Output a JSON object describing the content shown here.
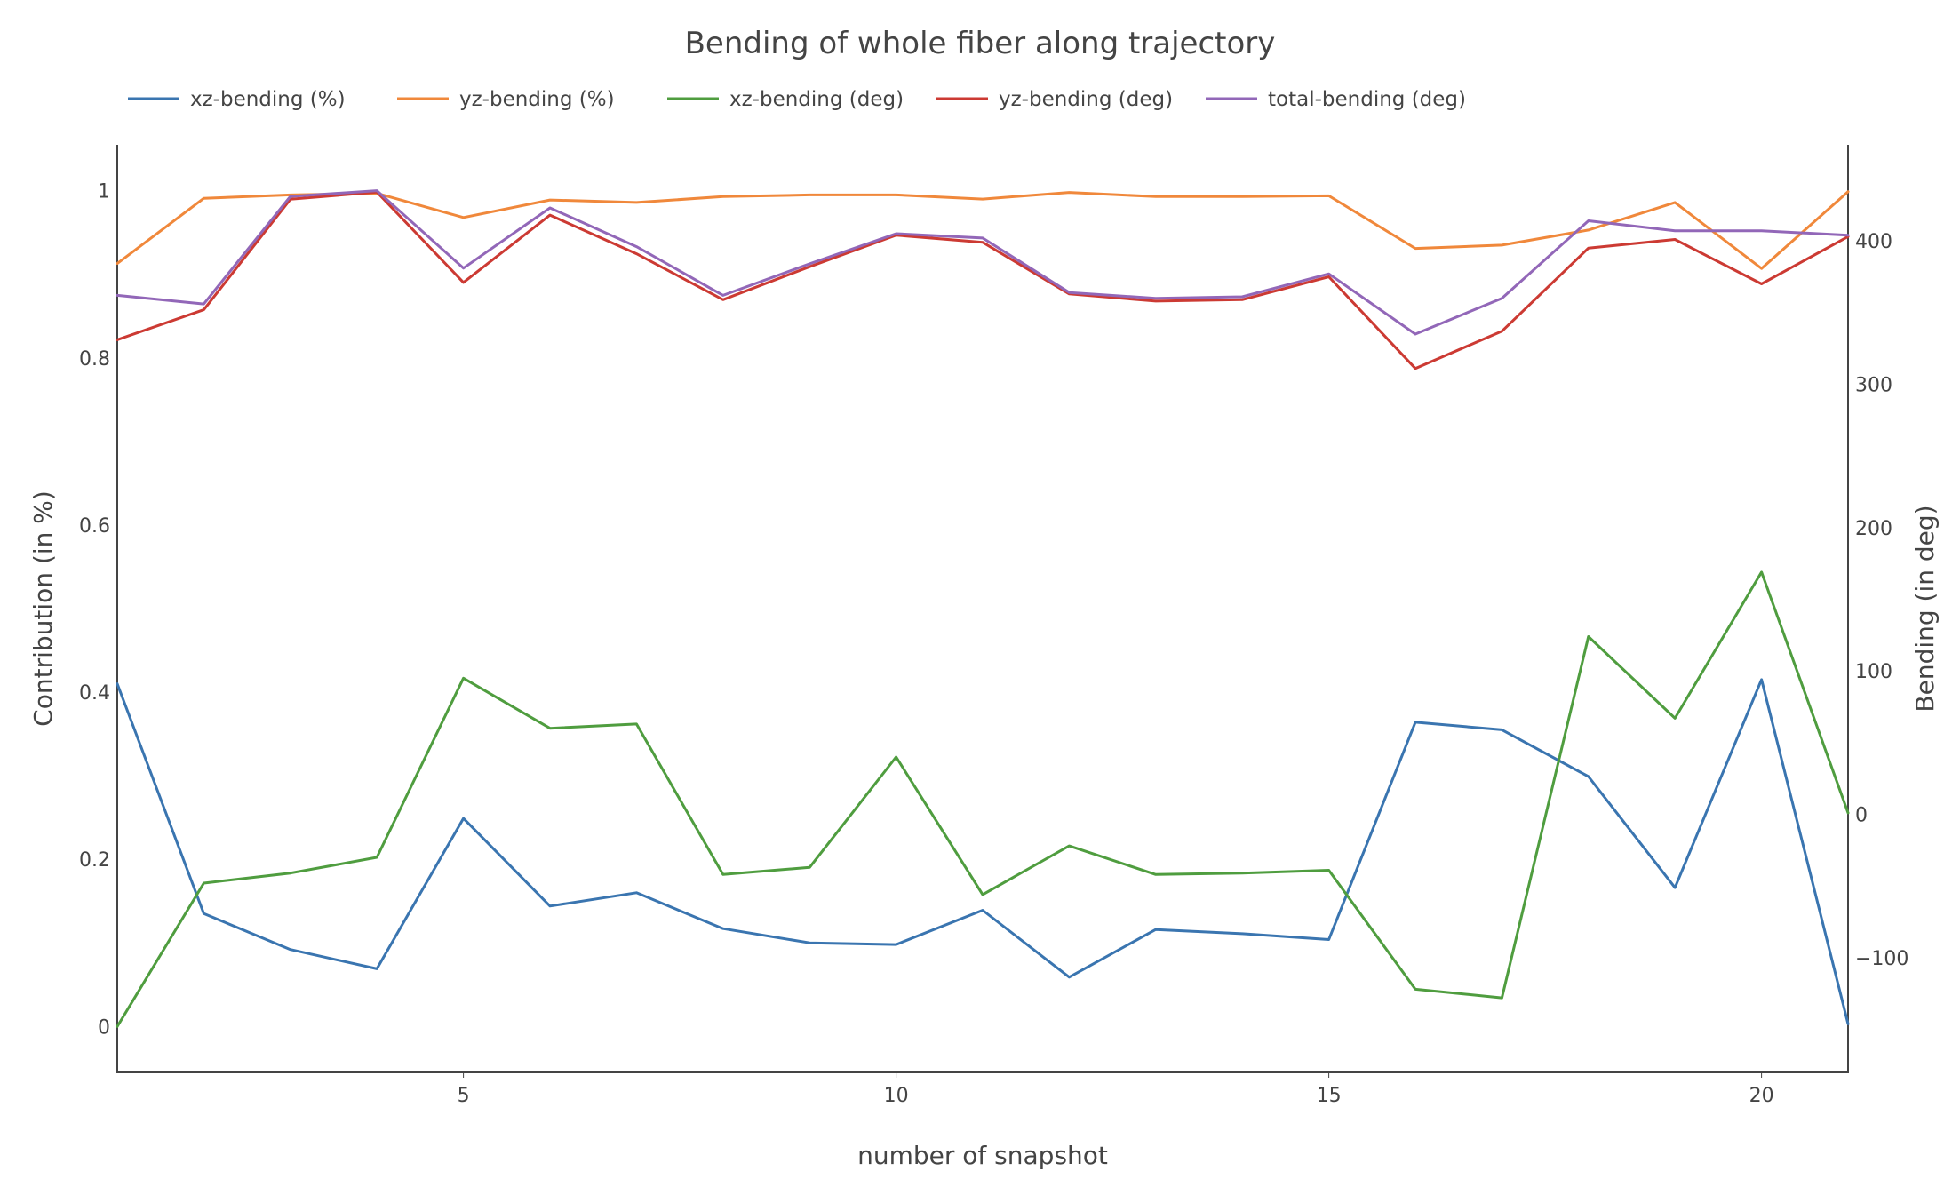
{
  "chart_data": {
    "type": "line",
    "title": "Bending of whole fiber along trajectory",
    "xlabel": "number of snapshot",
    "ylabel_left": "Contribution (in %)",
    "ylabel_right": "Bending (in deg)",
    "xlim": [
      1,
      21
    ],
    "ylim_left": [
      -0.055,
      1.055
    ],
    "ylim_right": [
      -180,
      467
    ],
    "x_ticks": [
      5,
      10,
      15,
      20
    ],
    "y_ticks_left": [
      0,
      0.2,
      0.4,
      0.6,
      0.8,
      1
    ],
    "y_ticks_right": [
      -100,
      0,
      100,
      200,
      300,
      400
    ],
    "grid": false,
    "legend_position": "top",
    "x": [
      1,
      2,
      3,
      4,
      5,
      6,
      7,
      8,
      9,
      10,
      11,
      12,
      13,
      14,
      15,
      16,
      17,
      18,
      19,
      20,
      21
    ],
    "series": [
      {
        "name": "xz-bending (%)",
        "axis": "left",
        "color": "#3a75b0",
        "values": [
          0.41,
          0.135,
          0.092,
          0.069,
          0.249,
          0.144,
          0.16,
          0.117,
          0.1,
          0.098,
          0.139,
          0.059,
          0.116,
          0.111,
          0.104,
          0.364,
          0.355,
          0.299,
          0.166,
          0.415,
          0.003
        ]
      },
      {
        "name": "yz-bending (%)",
        "axis": "left",
        "color": "#f0883b",
        "values": [
          0.913,
          0.991,
          0.995,
          0.997,
          0.968,
          0.989,
          0.986,
          0.993,
          0.995,
          0.995,
          0.99,
          0.998,
          0.993,
          0.993,
          0.994,
          0.931,
          0.935,
          0.953,
          0.986,
          0.907,
          0.999
        ]
      },
      {
        "name": "xz-bending (deg)",
        "axis": "right",
        "color": "#4f9d3f",
        "values": [
          -148,
          -48,
          -41,
          -30,
          95,
          60,
          63,
          -42,
          -37,
          40,
          -56,
          -22,
          -42,
          -41,
          -39,
          -122,
          -128,
          124,
          67,
          169,
          1
        ]
      },
      {
        "name": "yz-bending (deg)",
        "axis": "right",
        "color": "#cc3a33",
        "values": [
          331,
          352,
          429,
          434,
          371,
          418,
          391,
          359,
          382,
          404,
          399,
          363,
          358,
          359,
          375,
          311,
          337,
          395,
          401,
          370,
          403
        ]
      },
      {
        "name": "total-bending (deg)",
        "axis": "right",
        "color": "#9267b8",
        "values": [
          362,
          356,
          431,
          435,
          381,
          423,
          396,
          362,
          384,
          405,
          402,
          364,
          360,
          361,
          377,
          335,
          360,
          414,
          407,
          407,
          404
        ]
      }
    ]
  }
}
